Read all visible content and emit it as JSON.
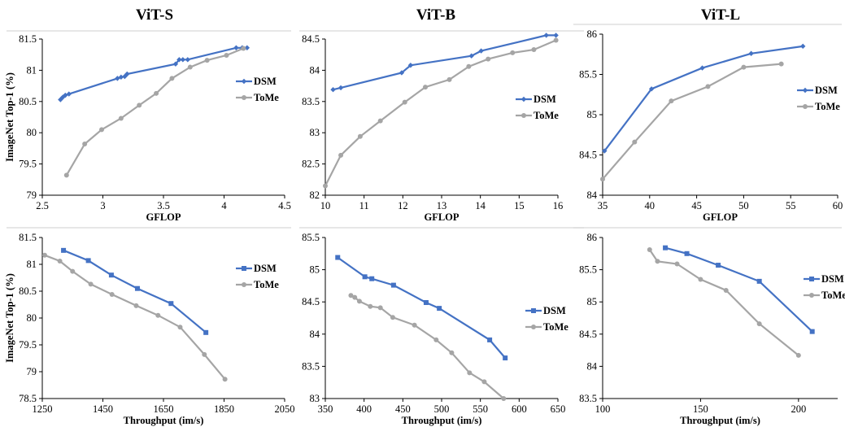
{
  "colors": {
    "dsm": "#4472C4",
    "tome": "#A5A5A5",
    "frame": "#BFBFBF",
    "axis": "#000000"
  },
  "chart_data": [
    {
      "id": "vits-gflop",
      "type": "line",
      "title": "ViT-S",
      "xlabel": "GFLOP",
      "ylabel": "ImageNet Top-1 (%)",
      "xlim": [
        2.5,
        4.5
      ],
      "ylim": [
        79,
        81.5
      ],
      "xticks": [
        "2.5",
        "3",
        "3.5",
        "4",
        "4.5"
      ],
      "yticks": [
        "79",
        "79.5",
        "80",
        "80.5",
        "81",
        "81.5"
      ],
      "marker": "diamond",
      "legend_position": "right",
      "series": [
        {
          "name": "DSM",
          "x": [
            2.65,
            2.67,
            2.69,
            2.72,
            3.12,
            3.15,
            3.18,
            3.2,
            3.6,
            3.63,
            3.66,
            3.7,
            4.1,
            4.15,
            4.19
          ],
          "y": [
            80.53,
            80.57,
            80.6,
            80.62,
            80.87,
            80.89,
            80.9,
            80.94,
            81.1,
            81.17,
            81.17,
            81.17,
            81.36,
            81.36,
            81.36
          ]
        },
        {
          "name": "ToMe",
          "x": [
            2.7,
            2.85,
            2.99,
            3.15,
            3.3,
            3.44,
            3.57,
            3.72,
            3.86,
            4.02,
            4.16
          ],
          "y": [
            79.32,
            79.82,
            80.05,
            80.23,
            80.44,
            80.63,
            80.87,
            81.05,
            81.16,
            81.24,
            81.35
          ]
        }
      ]
    },
    {
      "id": "vitb-gflop",
      "type": "line",
      "title": "ViT-B",
      "xlabel": "GFLOP",
      "ylabel": "",
      "xlim": [
        10,
        16
      ],
      "ylim": [
        82,
        84.5
      ],
      "xticks": [
        "10",
        "11",
        "12",
        "13",
        "14",
        "15",
        "16"
      ],
      "yticks": [
        "82",
        "82.5",
        "83",
        "83.5",
        "84",
        "84.5"
      ],
      "marker": "diamond",
      "legend_position": "right",
      "series": [
        {
          "name": "DSM",
          "x": [
            10.2,
            10.4,
            11.97,
            12.2,
            13.77,
            14.02,
            15.7,
            15.95
          ],
          "y": [
            83.69,
            83.72,
            83.96,
            84.08,
            84.23,
            84.31,
            84.56,
            84.56
          ]
        },
        {
          "name": "ToMe",
          "x": [
            10.0,
            10.4,
            10.9,
            11.42,
            12.05,
            12.58,
            13.2,
            13.7,
            14.2,
            14.83,
            15.38,
            15.95
          ],
          "y": [
            82.15,
            82.64,
            82.94,
            83.19,
            83.49,
            83.73,
            83.85,
            84.06,
            84.18,
            84.28,
            84.33,
            84.48
          ]
        }
      ]
    },
    {
      "id": "vitl-gflop",
      "type": "line",
      "title": "ViT-L",
      "xlabel": "GFLOP",
      "ylabel": "",
      "xlim": [
        35,
        60
      ],
      "ylim": [
        84,
        86
      ],
      "xticks": [
        "35",
        "40",
        "45",
        "50",
        "55",
        "60"
      ],
      "yticks": [
        "84",
        "84.5",
        "85",
        "85.5",
        "86"
      ],
      "marker": "diamond",
      "legend_position": "right",
      "series": [
        {
          "name": "DSM",
          "x": [
            35.2,
            40.2,
            45.6,
            50.8,
            56.3
          ],
          "y": [
            84.55,
            85.32,
            85.58,
            85.76,
            85.85
          ]
        },
        {
          "name": "ToMe",
          "x": [
            35.0,
            38.4,
            42.3,
            46.2,
            50.0,
            54.0
          ],
          "y": [
            84.2,
            84.66,
            85.17,
            85.35,
            85.59,
            85.63
          ]
        }
      ]
    },
    {
      "id": "vits-throughput",
      "type": "line",
      "title": "",
      "xlabel": "Throughput (im/s)",
      "ylabel": "ImageNet Top-1 (%)",
      "xlim": [
        1250,
        2050
      ],
      "ylim": [
        78.5,
        81.5
      ],
      "xticks": [
        "1250",
        "1450",
        "1650",
        "1850",
        "2050"
      ],
      "yticks": [
        "78.5",
        "79",
        "79.5",
        "80",
        "80.5",
        "81",
        "81.5"
      ],
      "marker": "square",
      "legend_position": "right",
      "series": [
        {
          "name": "DSM",
          "x": [
            1320,
            1402,
            1478,
            1564,
            1675,
            1790
          ],
          "y": [
            81.26,
            81.07,
            80.8,
            80.55,
            80.27,
            79.73
          ]
        },
        {
          "name": "ToMe",
          "x": [
            1258,
            1308,
            1350,
            1410,
            1480,
            1560,
            1632,
            1705,
            1785,
            1853
          ],
          "y": [
            81.17,
            81.06,
            80.87,
            80.63,
            80.44,
            80.23,
            80.05,
            79.83,
            79.32,
            78.86
          ]
        }
      ]
    },
    {
      "id": "vitb-throughput",
      "type": "line",
      "title": "",
      "xlabel": "Throughput (im/s)",
      "ylabel": "",
      "xlim": [
        350,
        650
      ],
      "ylim": [
        83,
        85.5
      ],
      "xticks": [
        "350",
        "400",
        "450",
        "500",
        "550",
        "600",
        "650"
      ],
      "yticks": [
        "83",
        "83.5",
        "84",
        "84.5",
        "85",
        "85.5"
      ],
      "marker": "square",
      "legend_position": "right",
      "series": [
        {
          "name": "DSM",
          "x": [
            366,
            401,
            410,
            438,
            480,
            497,
            562,
            582
          ],
          "y": [
            85.19,
            84.89,
            84.86,
            84.76,
            84.49,
            84.4,
            83.91,
            83.63
          ]
        },
        {
          "name": "ToMe",
          "x": [
            383,
            388,
            394,
            408,
            421,
            437,
            465,
            493,
            513,
            536,
            555,
            580
          ],
          "y": [
            84.6,
            84.57,
            84.51,
            84.43,
            84.41,
            84.26,
            84.14,
            83.91,
            83.71,
            83.4,
            83.26,
            83.0
          ]
        }
      ]
    },
    {
      "id": "vitl-throughput",
      "type": "line",
      "title": "",
      "xlabel": "Throughput (im/s)",
      "ylabel": "",
      "xlim": [
        100,
        220
      ],
      "ylim": [
        83.5,
        86
      ],
      "xticks": [
        "100",
        "150",
        "200"
      ],
      "yticks": [
        "83.5",
        "84",
        "84.5",
        "85",
        "85.5",
        "86"
      ],
      "marker": "square",
      "legend_position": "right",
      "series": [
        {
          "name": "DSM",
          "x": [
            132,
            143,
            159,
            180,
            207
          ],
          "y": [
            85.84,
            85.75,
            85.57,
            85.32,
            84.54
          ]
        },
        {
          "name": "ToMe",
          "x": [
            124,
            128,
            138,
            150,
            163,
            180,
            200
          ],
          "y": [
            85.81,
            85.63,
            85.59,
            85.35,
            85.18,
            84.66,
            84.17
          ]
        }
      ]
    }
  ]
}
